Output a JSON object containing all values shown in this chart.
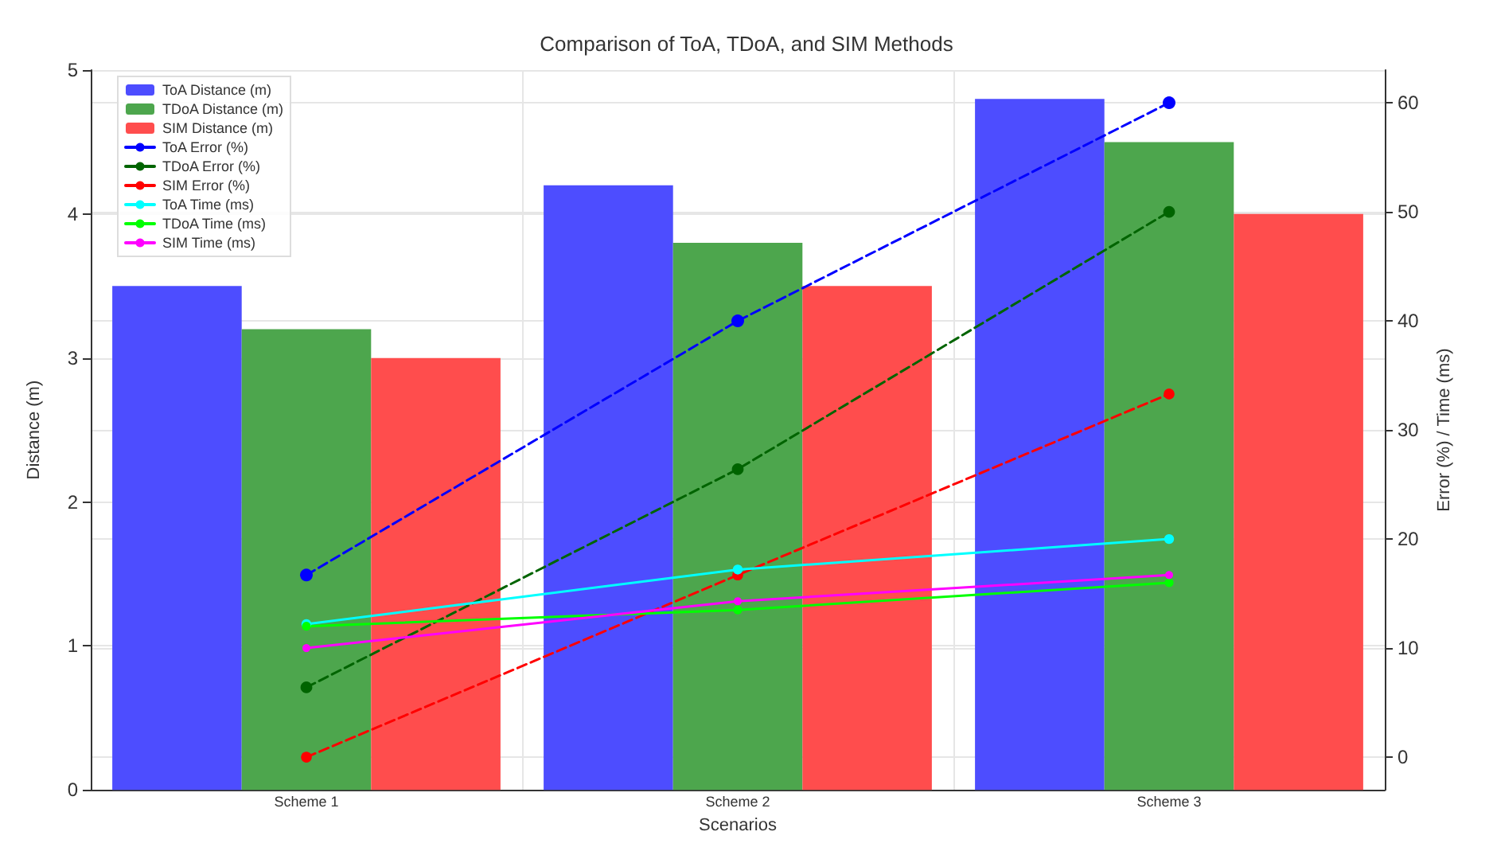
{
  "chart_data": {
    "type": "bar",
    "title": "Comparison of ToA, TDoA, and SIM Methods",
    "xlabel": "Scenarios",
    "ylabel": "Distance (m)",
    "y2label": "Error (%) / Time (ms)",
    "categories": [
      "Scheme 1",
      "Scheme 2",
      "Scheme 3"
    ],
    "series": [
      {
        "name": "ToA Distance (m)",
        "color": "#4d4dff",
        "values": [
          3.5,
          4.2,
          4.8
        ]
      },
      {
        "name": "TDoA Distance (m)",
        "color": "#4da64d",
        "values": [
          3.2,
          3.8,
          4.5
        ]
      },
      {
        "name": "SIM Distance (m)",
        "color": "#ff4d4d",
        "values": [
          3.0,
          3.5,
          4.0
        ]
      },
      {
        "name": "ToA Error (%)",
        "type": "line",
        "axis": "y2",
        "color": "#0000ff",
        "line_style": "dashed",
        "marker": "circle",
        "values": [
          16.7,
          40,
          60
        ]
      },
      {
        "name": "TDoA Error (%)",
        "type": "line",
        "axis": "y2",
        "color": "#006400",
        "line_style": "dashed",
        "marker": "circle",
        "values": [
          6.4,
          26.4,
          50
        ]
      },
      {
        "name": "SIM Error (%)",
        "type": "line",
        "axis": "y2",
        "color": "#ff0000",
        "line_style": "dashed",
        "marker": "circle",
        "values": [
          0,
          16.7,
          33.3
        ]
      },
      {
        "name": "ToA Time (ms)",
        "type": "line",
        "axis": "y2",
        "color": "#00ffff",
        "line_style": "solid",
        "marker": "circle",
        "values": [
          12.2,
          17.2,
          20
        ]
      },
      {
        "name": "TDoA Time (ms)",
        "type": "line",
        "axis": "y2",
        "color": "#00ff00",
        "line_style": "solid",
        "marker": "circle",
        "values": [
          12,
          13.5,
          16
        ]
      },
      {
        "name": "SIM Time (ms)",
        "type": "line",
        "axis": "y2",
        "color": "#ff00ff",
        "line_style": "solid",
        "marker": "circle",
        "values": [
          10,
          14.3,
          16.7
        ]
      }
    ],
    "ylim": [
      0,
      5
    ],
    "yticks": [
      0,
      1,
      2,
      3,
      4,
      5
    ],
    "y2lim": [
      -3,
      63
    ],
    "y2ticks": [
      0,
      10,
      20,
      30,
      40,
      50,
      60
    ],
    "grid": true,
    "legend": "top left"
  }
}
